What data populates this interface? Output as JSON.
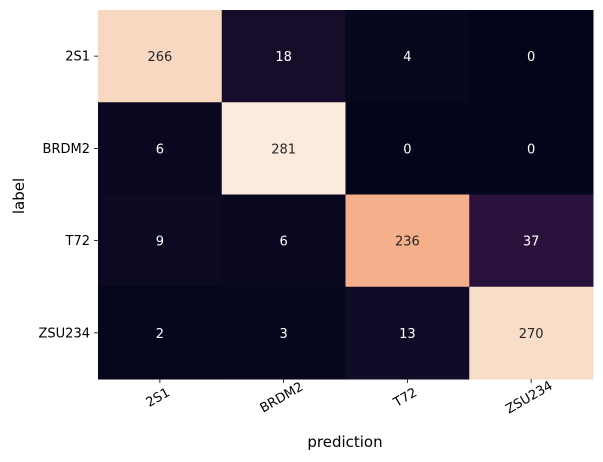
{
  "chart_data": {
    "type": "heatmap",
    "title": "",
    "xlabel": "prediction",
    "ylabel": "label",
    "x_categories": [
      "2S1",
      "BRDM2",
      "T72",
      "ZSU234"
    ],
    "y_categories": [
      "2S1",
      "BRDM2",
      "T72",
      "ZSU234"
    ],
    "values": [
      [
        266,
        18,
        4,
        0
      ],
      [
        6,
        281,
        0,
        0
      ],
      [
        9,
        6,
        236,
        37
      ],
      [
        2,
        3,
        13,
        270
      ]
    ],
    "colormap": "rocket",
    "vmin": 0,
    "vmax": 281,
    "colorbar": false,
    "annotations": true
  }
}
